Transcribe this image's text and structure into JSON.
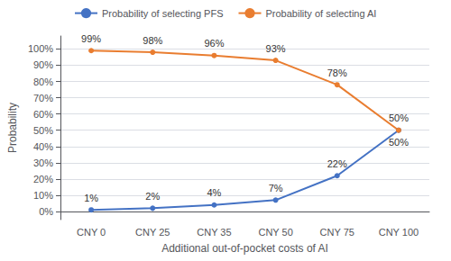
{
  "chart_data": {
    "type": "line",
    "xlabel": "Additional out-of-pocket costs of AI",
    "ylabel": "Probability",
    "categories": [
      "CNY 0",
      "CNY 25",
      "CNY 35",
      "CNY 50",
      "CNY 75",
      "CNY 100"
    ],
    "series": [
      {
        "name": "Probability of selecting PFS",
        "color": "#4472C4",
        "values": [
          1,
          2,
          4,
          7,
          22,
          50
        ],
        "value_labels": [
          "1%",
          "2%",
          "4%",
          "7%",
          "22%",
          "50%"
        ]
      },
      {
        "name": "Probability of selecting AI",
        "color": "#E97D30",
        "values": [
          99,
          98,
          96,
          93,
          78,
          50
        ],
        "value_labels": [
          "99%",
          "98%",
          "96%",
          "93%",
          "78%",
          "50%"
        ]
      }
    ],
    "ylim": [
      -5,
      108
    ],
    "yticks": [
      {
        "value": 0,
        "label": "0%"
      },
      {
        "value": 10,
        "label": "10%"
      },
      {
        "value": 20,
        "label": "20%"
      },
      {
        "value": 30,
        "label": "30%"
      },
      {
        "value": 40,
        "label": "40%"
      },
      {
        "value": 50,
        "label": "50%"
      },
      {
        "value": 60,
        "label": "60%"
      },
      {
        "value": 70,
        "label": "70%"
      },
      {
        "value": 80,
        "label": "80%"
      },
      {
        "value": 90,
        "label": "90%"
      },
      {
        "value": 100,
        "label": "100%"
      }
    ],
    "grid": true,
    "legend": "top",
    "data_labels": true,
    "marker": "circle"
  }
}
